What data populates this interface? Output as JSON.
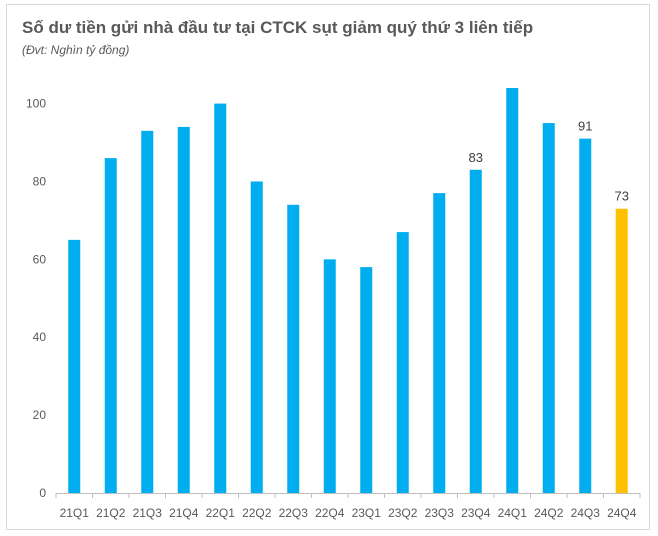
{
  "title": "Số dư tiền gửi nhà đầu tư tại CTCK sụt giảm quý thứ 3 liên tiếp",
  "subtitle": "(Đvt: Nghìn tỷ đồng)",
  "colors": {
    "bar": "#00aeef",
    "highlight": "#ffc000",
    "axis": "#bfbfbf",
    "text": "#595959"
  },
  "chart_data": {
    "type": "bar",
    "title": "Số dư tiền gửi nhà đầu tư tại CTCK sụt giảm quý thứ 3 liên tiếp",
    "subtitle": "(Đvt: Nghìn tỷ đồng)",
    "xlabel": "",
    "ylabel": "",
    "categories": [
      "21Q1",
      "21Q2",
      "21Q3",
      "21Q4",
      "22Q1",
      "22Q2",
      "22Q3",
      "22Q4",
      "23Q1",
      "23Q2",
      "23Q3",
      "23Q4",
      "24Q1",
      "24Q2",
      "24Q3",
      "24Q4"
    ],
    "values": [
      65,
      86,
      93,
      94,
      100,
      80,
      74,
      60,
      58,
      67,
      77,
      83,
      104,
      95,
      91,
      73
    ],
    "data_labels": [
      "",
      "",
      "",
      "",
      "",
      "",
      "",
      "",
      "",
      "",
      "",
      "83",
      "",
      "",
      "91",
      "73"
    ],
    "highlight": [
      "24Q4"
    ],
    "ylim": [
      0,
      104
    ],
    "yticks": [
      0,
      20,
      40,
      60,
      80,
      100
    ],
    "grid": false,
    "legend": "none"
  }
}
